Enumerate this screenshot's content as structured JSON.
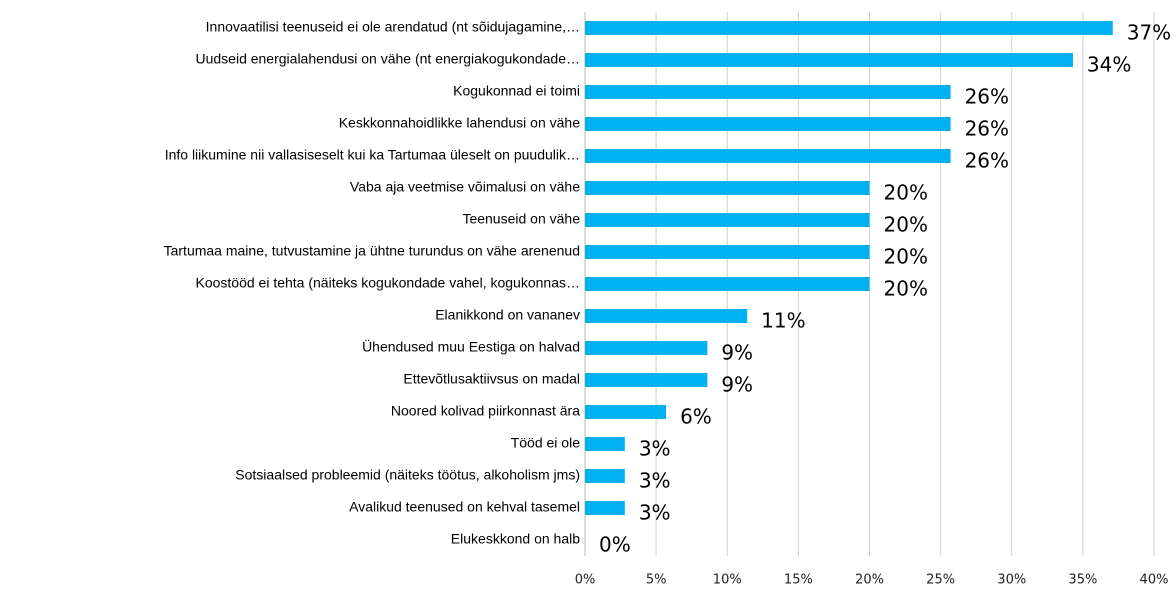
{
  "chart_data": {
    "type": "barh",
    "categories": [
      "Innovaatilisi teenuseid ei ole arendatud (nt sõidujagamine,…",
      "Uudseid energialahendusi on vähe (nt energiakogukondade…",
      "Kogukonnad ei toimi",
      "Keskkonnahoidlikke lahendusi on vähe",
      "Info liikumine nii vallasiseselt kui ka Tartumaa üleselt on puudulik…",
      "Vaba aja veetmise võimalusi on vähe",
      "Teenuseid on vähe",
      "Tartumaa maine, tutvustamine ja ühtne turundus on vähe arenenud",
      "Koostööd ei tehta (näiteks kogukondade vahel, kogukonnas…",
      "Elanikkond on vananev",
      "Ühendused muu Eestiga on halvad",
      "Ettevõtlusaktiivsus on madal",
      "Noored kolivad piirkonnast ära",
      "Tööd ei ole",
      "Sotsiaalsed probleemid (näiteks töötus, alkoholism jms)",
      "Avalikud teenused on kehval tasemel",
      "Elukeskkond on halb"
    ],
    "values": [
      37.1,
      34.3,
      25.7,
      25.7,
      25.7,
      20.0,
      20.0,
      20.0,
      20.0,
      11.4,
      8.6,
      8.6,
      5.7,
      2.8,
      2.8,
      2.8,
      0
    ],
    "value_labels": [
      "37%",
      "34%",
      "26%",
      "26%",
      "26%",
      "20%",
      "20%",
      "20%",
      "20%",
      "11%",
      "9%",
      "9%",
      "6%",
      "3%",
      "3%",
      "3%",
      "0%"
    ],
    "color": "#00b0f0",
    "xlim": [
      0,
      40
    ],
    "xticks": [
      {
        "value": 0,
        "label": "0%"
      },
      {
        "value": 5,
        "label": "5%"
      },
      {
        "value": 10,
        "label": "10%"
      },
      {
        "value": 15,
        "label": "15%"
      },
      {
        "value": 20,
        "label": "20%"
      },
      {
        "value": 25,
        "label": "25%"
      },
      {
        "value": 30,
        "label": "30%"
      },
      {
        "value": 35,
        "label": "35%"
      },
      {
        "value": 40,
        "label": "40%"
      }
    ],
    "grid": true
  }
}
